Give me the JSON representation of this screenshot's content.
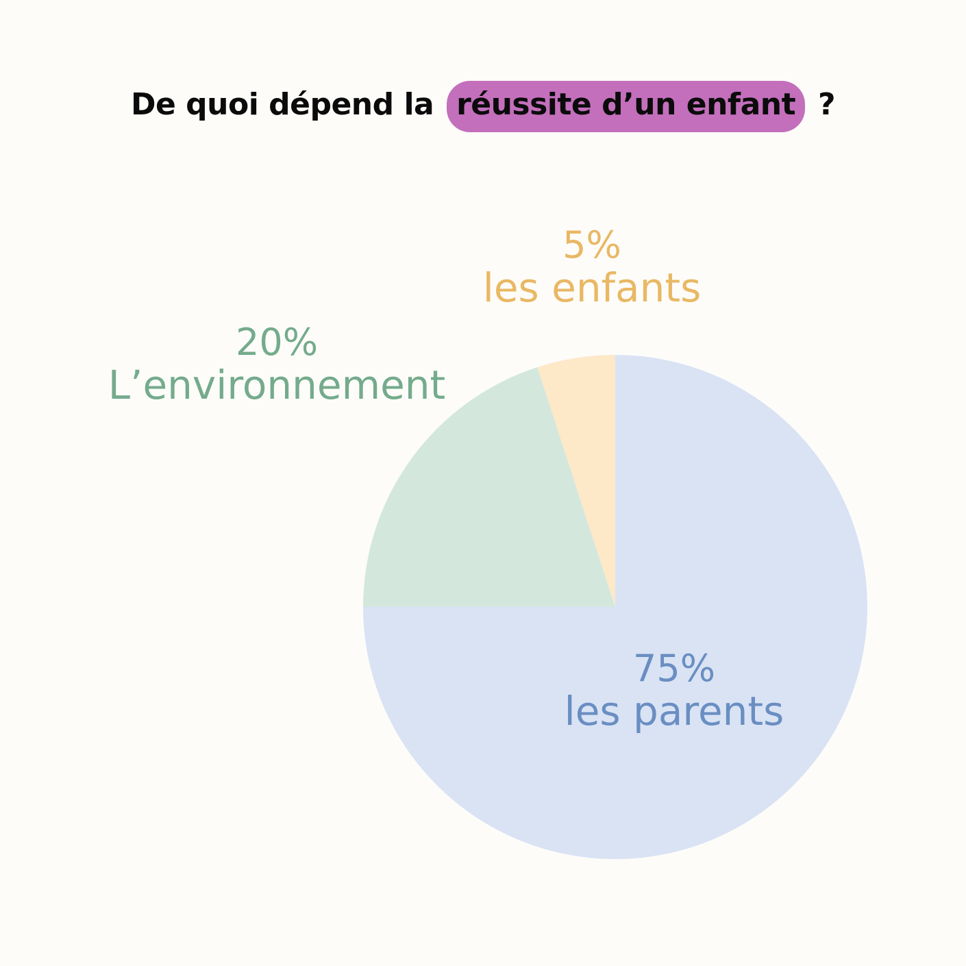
{
  "header": {
    "title_before": "De quoi dépend la",
    "title_highlight": "réussite d’un enfant",
    "title_after": "?",
    "highlight_color": "#c36fbc"
  },
  "chart_data": {
    "type": "pie",
    "title": "De quoi dépend la réussite d’un enfant ?",
    "slices": [
      {
        "label": "les parents",
        "percent_label": "75%",
        "value": 75,
        "fill": "#d9e3f4",
        "text_color": "#6a8ec2"
      },
      {
        "label": "L’environnement",
        "percent_label": "20%",
        "value": 20,
        "fill": "#d3e7dd",
        "text_color": "#74ab8c"
      },
      {
        "label": "les enfants",
        "percent_label": "5%",
        "value": 5,
        "fill": "#fde8c8",
        "text_color": "#e9b864"
      }
    ],
    "start": "12 o'clock",
    "direction": "clockwise",
    "legend": "none"
  }
}
